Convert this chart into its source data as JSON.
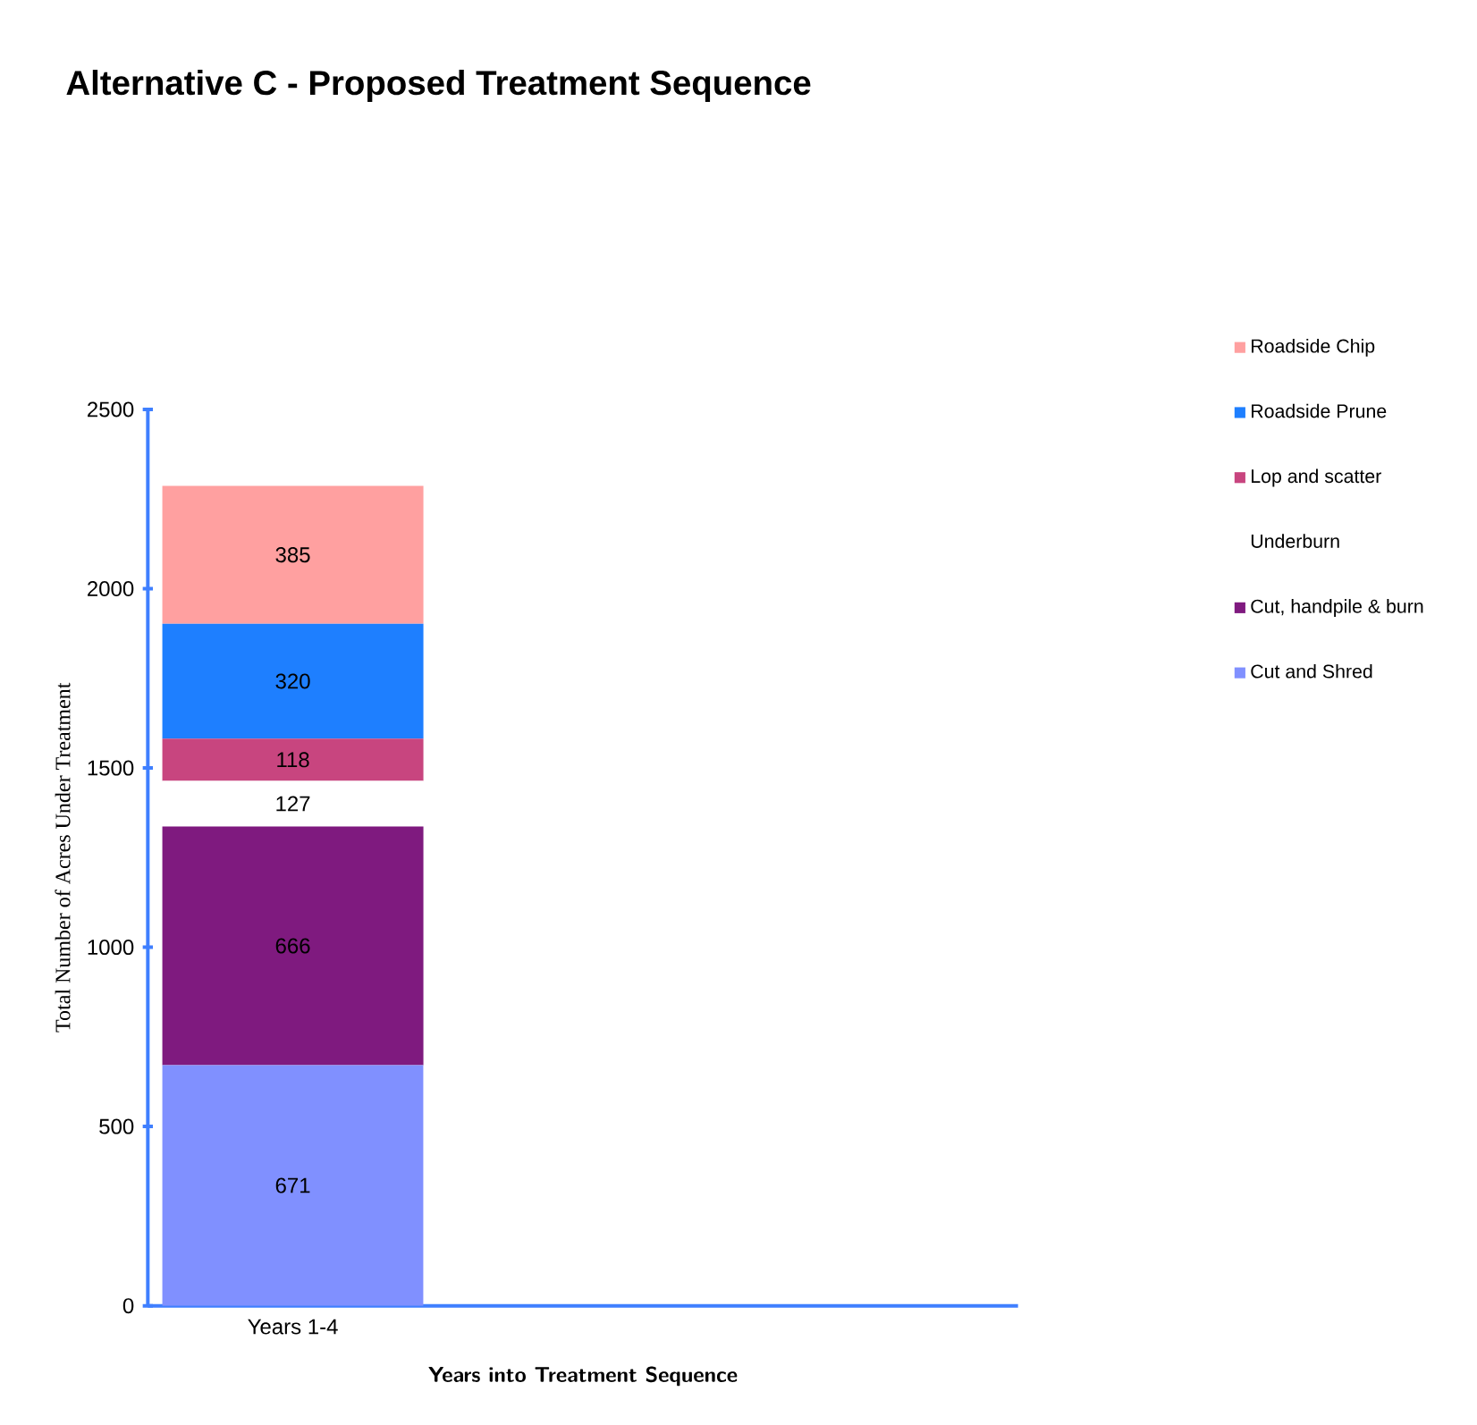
{
  "chart_data": {
    "type": "bar",
    "title": "Alternative C - Proposed Treatment Sequence",
    "xlabel": "Years into Treatment Sequence",
    "ylabel": "Total Number of Acres Under Treatment",
    "categories": [
      "Years 1-4",
      null,
      null
    ],
    "stacked": true,
    "data_labels": true,
    "legend": "right",
    "grid": false,
    "ylim": [
      0,
      2500
    ],
    "yticks": [
      0,
      500,
      1000,
      1500,
      2000,
      2500
    ],
    "series": [
      {
        "name": "Cut and Shred",
        "color": "#8090ff",
        "values": [
          671,
          null,
          null
        ]
      },
      {
        "name": "Cut, handpile & burn",
        "color": "#7f1a7f",
        "values": [
          666,
          null,
          null
        ]
      },
      {
        "name": "Underburn",
        "color": "#ffffff",
        "values": [
          127,
          null,
          null
        ]
      },
      {
        "name": "Lop and scatter",
        "color": "#c8457f",
        "values": [
          118,
          null,
          null
        ]
      },
      {
        "name": "Roadside Prune",
        "color": "#1e7fff",
        "values": [
          320,
          null,
          null
        ]
      },
      {
        "name": "Roadside Chip",
        "color": "#ffa0a0",
        "values": [
          385,
          null,
          null
        ]
      }
    ]
  }
}
